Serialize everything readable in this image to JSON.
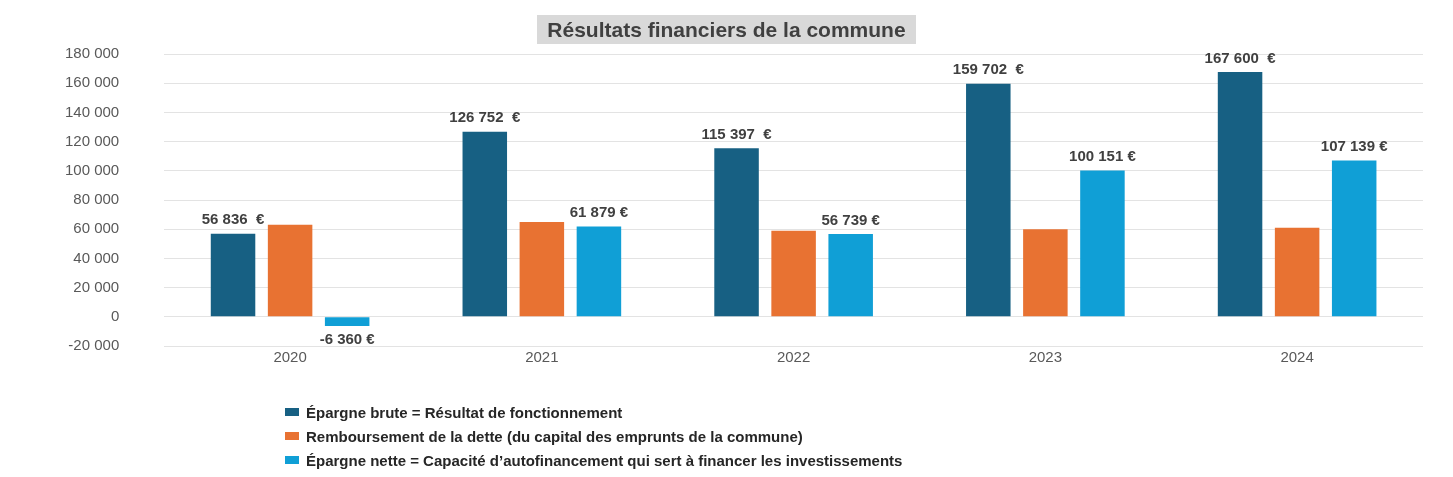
{
  "chart_data": {
    "type": "bar",
    "title": "Résultats financiers de la commune",
    "categories": [
      "2020",
      "2021",
      "2022",
      "2023",
      "2024"
    ],
    "series": [
      {
        "name": "Épargne brute = Résultat de fonctionnement",
        "color": "#176083",
        "values": [
          56836,
          126752,
          115397,
          159702,
          167600
        ],
        "value_labels": [
          "56 836  €",
          "126 752  €",
          "115 397  €",
          "159 702  €",
          "167 600  €"
        ]
      },
      {
        "name": "Remboursement de la dette (du capital des emprunts de la commune)",
        "color": "#e87232",
        "values": [
          63000,
          65000,
          59000,
          60000,
          61000
        ]
      },
      {
        "name": "Épargne nette = Capacité d’autofinancement qui sert à financer les investissements",
        "color": "#109fd6",
        "values": [
          -6360,
          61879,
          56739,
          100151,
          107139
        ],
        "value_labels": [
          "-6 360 €",
          "61 879 €",
          "56 739 €",
          "100 151 €",
          "107 139 €"
        ]
      }
    ],
    "ylim": [
      -20000,
      180000
    ],
    "yticks": [
      {
        "value": -20000,
        "label": "-20 000"
      },
      {
        "value": 0,
        "label": "0"
      },
      {
        "value": 20000,
        "label": "20 000"
      },
      {
        "value": 40000,
        "label": "40 000"
      },
      {
        "value": 60000,
        "label": "60 000"
      },
      {
        "value": 80000,
        "label": "80 000"
      },
      {
        "value": 100000,
        "label": "100 000"
      },
      {
        "value": 120000,
        "label": "120 000"
      },
      {
        "value": 140000,
        "label": "140 000"
      },
      {
        "value": 160000,
        "label": "160 000"
      },
      {
        "value": 180000,
        "label": "180 000"
      }
    ],
    "grid": "y",
    "legend": "bottom"
  }
}
